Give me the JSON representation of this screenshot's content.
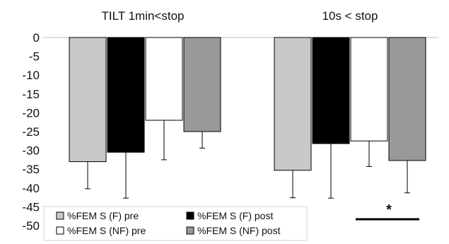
{
  "chart_data": {
    "type": "bar",
    "groups": [
      "TILT 1min<stop",
      "10s < stop"
    ],
    "series": [
      {
        "name": "%FEM S (F) pre",
        "color": "#c8c8c8",
        "values": [
          -33,
          -35.3
        ],
        "error": [
          7.2,
          7.3
        ]
      },
      {
        "name": "%FEM S (F) post",
        "color": "#000000",
        "values": [
          -30.5,
          -28.2
        ],
        "error": [
          12.2,
          14.5
        ]
      },
      {
        "name": "%FEM S (NF) pre",
        "color": "#ffffff",
        "values": [
          -22,
          -27.5
        ],
        "error": [
          10.5,
          6.8
        ]
      },
      {
        "name": "%FEM S (NF) post",
        "color": "#999999",
        "values": [
          -25,
          -32.7
        ],
        "error": [
          4.4,
          8.6
        ]
      }
    ],
    "yticks": [
      "0",
      "-5",
      "-10",
      "-15",
      "-20",
      "-25",
      "-30",
      "-35",
      "-40",
      "-45",
      "-50"
    ],
    "ylim": [
      -50,
      0
    ],
    "annotation": "*",
    "legend_placement": "bottom-left",
    "grid": false
  }
}
